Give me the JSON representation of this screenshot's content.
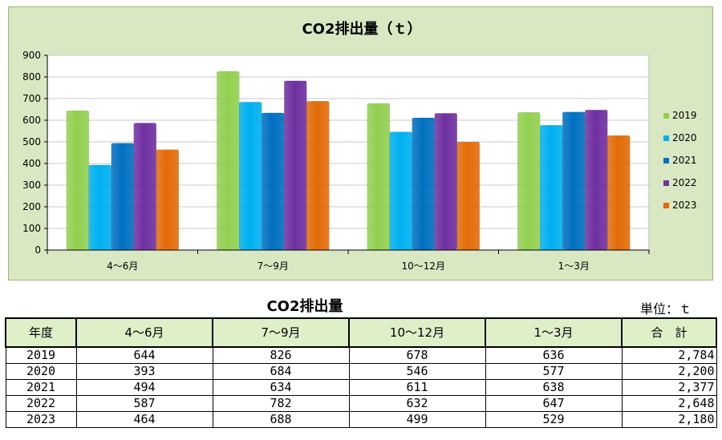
{
  "chart_data": {
    "type": "bar",
    "title": "CO2排出量（ｔ）",
    "categories": [
      "4～6月",
      "7～9月",
      "10～12月",
      "1～3月"
    ],
    "series": [
      {
        "name": "2019",
        "values": [
          644,
          826,
          678,
          636
        ]
      },
      {
        "name": "2020",
        "values": [
          393,
          684,
          546,
          577
        ]
      },
      {
        "name": "2021",
        "values": [
          494,
          634,
          611,
          638
        ]
      },
      {
        "name": "2022",
        "values": [
          587,
          782,
          632,
          647
        ]
      },
      {
        "name": "2023",
        "values": [
          464,
          688,
          499,
          529
        ]
      }
    ],
    "ylim": [
      0,
      900
    ],
    "yticks": [
      0,
      100,
      200,
      300,
      400,
      500,
      600,
      700,
      800,
      900
    ],
    "grid": true,
    "legend": "right",
    "colors": [
      "#92d050",
      "#00b0f0",
      "#0070c0",
      "#7030a0",
      "#e36c09"
    ]
  },
  "table": {
    "title": "CO2排出量",
    "unit": "単位：ｔ",
    "headers": [
      "年度",
      "4～6月",
      "7～9月",
      "10～12月",
      "1～3月",
      "合　計"
    ],
    "rows": [
      [
        "2019",
        "644",
        "826",
        "678",
        "636",
        "2,784"
      ],
      [
        "2020",
        "393",
        "684",
        "546",
        "577",
        "2,200"
      ],
      [
        "2021",
        "494",
        "634",
        "611",
        "638",
        "2,377"
      ],
      [
        "2022",
        "587",
        "782",
        "632",
        "647",
        "2,648"
      ],
      [
        "2023",
        "464",
        "688",
        "499",
        "529",
        "2,180"
      ]
    ]
  }
}
